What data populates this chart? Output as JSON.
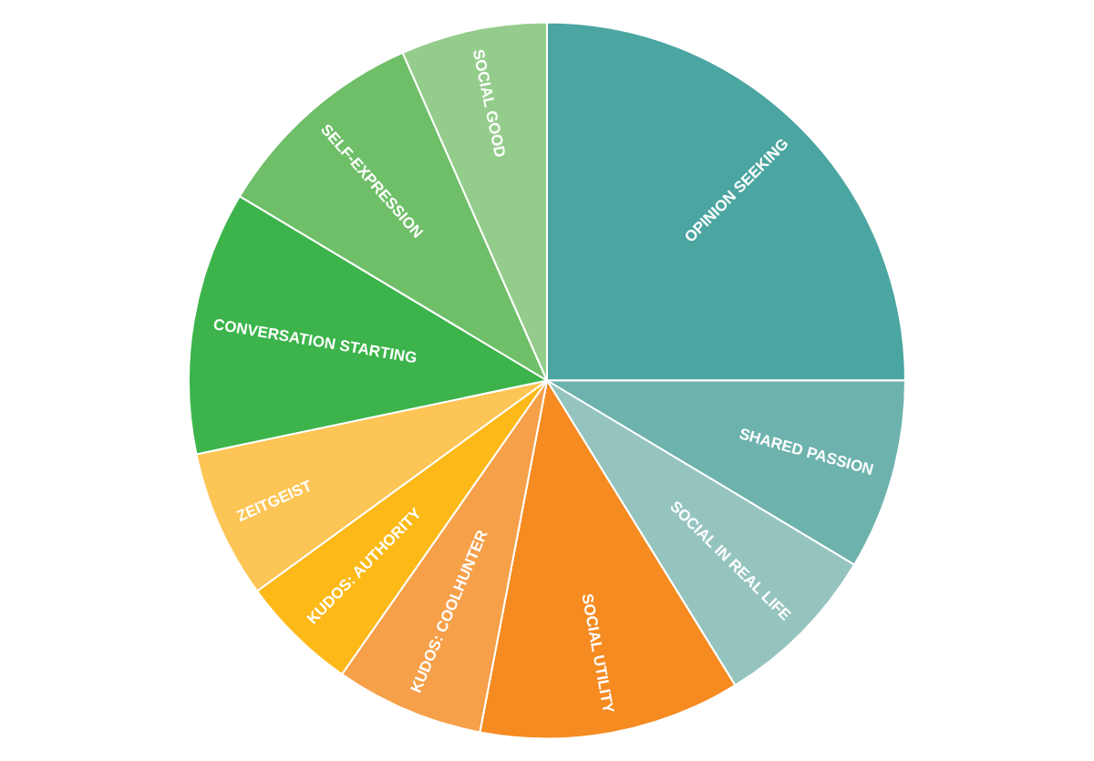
{
  "chart_data": {
    "type": "pie",
    "categories": [
      "OPINION SEEKING",
      "SHARED PASSION",
      "SOCIAL IN REAL LIFE",
      "SOCIAL UTILITY",
      "KUDOS: COOLHUNTER",
      "KUDOS: AUTHORITY",
      "ZEITGEIST",
      "CONVERSATION STARTING",
      "SELF-EXPRESSION",
      "SOCIAL GOOD"
    ],
    "values": [
      25,
      8.6,
      7.6,
      11.8,
      6.7,
      5.3,
      6.7,
      11.9,
      9.8,
      6.6
    ],
    "colors": [
      "#4ba5a0",
      "#6db2ad",
      "#95c4bf",
      "#f58b21",
      "#f6a04a",
      "#fcb917",
      "#fdc555",
      "#3cb44b",
      "#6ebf68",
      "#94cd8b"
    ]
  }
}
